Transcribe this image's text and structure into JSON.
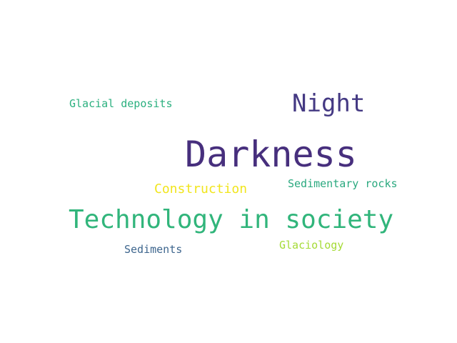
{
  "word_cloud": {
    "words": [
      {
        "text": "Darkness",
        "color": "#472f7d"
      },
      {
        "text": "Technology in society",
        "color": "#31b57b"
      },
      {
        "text": "Night",
        "color": "#443983"
      },
      {
        "text": "Construction",
        "color": "#f1e51d"
      },
      {
        "text": "Sedimentary rocks",
        "color": "#2aa97f"
      },
      {
        "text": "Glacial deposits",
        "color": "#2bb07f"
      },
      {
        "text": "Sediments",
        "color": "#3e668e"
      },
      {
        "text": "Glaciology",
        "color": "#a5db36"
      }
    ]
  }
}
